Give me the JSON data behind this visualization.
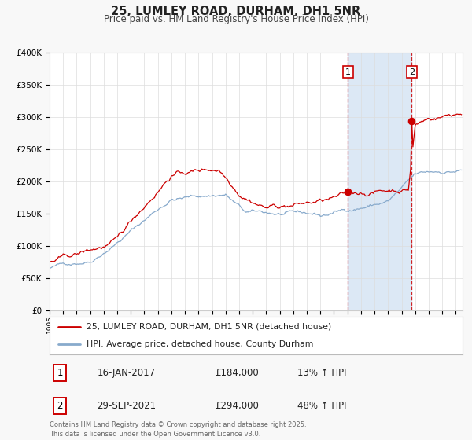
{
  "title": "25, LUMLEY ROAD, DURHAM, DH1 5NR",
  "subtitle": "Price paid vs. HM Land Registry's House Price Index (HPI)",
  "ylim": [
    0,
    400000
  ],
  "yticks": [
    0,
    50000,
    100000,
    150000,
    200000,
    250000,
    300000,
    350000,
    400000
  ],
  "bg_color": "#f8f8f8",
  "plot_bg": "#ffffff",
  "line1_color": "#cc0000",
  "line2_color": "#88aacc",
  "span_color": "#dce8f5",
  "marker1_date": 2017.04,
  "marker1_value": 184000,
  "marker2_date": 2021.75,
  "marker2_value": 294000,
  "legend_line1": "25, LUMLEY ROAD, DURHAM, DH1 5NR (detached house)",
  "legend_line2": "HPI: Average price, detached house, County Durham",
  "annotation1": [
    "1",
    "16-JAN-2017",
    "£184,000",
    "13% ↑ HPI"
  ],
  "annotation2": [
    "2",
    "29-SEP-2021",
    "£294,000",
    "48% ↑ HPI"
  ],
  "footnote": "Contains HM Land Registry data © Crown copyright and database right 2025.\nThis data is licensed under the Open Government Licence v3.0.",
  "xstart": 1995.0,
  "xend": 2025.5
}
